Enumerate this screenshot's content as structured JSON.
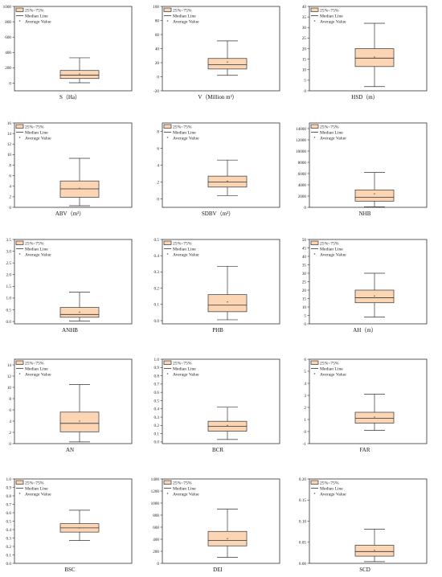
{
  "legend": {
    "box_label": "25%~75%",
    "median_label": "Median Line",
    "mean_label": "Average Value"
  },
  "colors": {
    "box_fill": "#fcd5b5",
    "stroke": "#333333"
  },
  "chart_data": [
    {
      "type": "box",
      "xlabel": "S（Ha）",
      "ylim": [
        -100,
        1000
      ],
      "yticks": [
        0,
        200,
        400,
        600,
        800,
        1000
      ],
      "min": 5,
      "q1": 60,
      "median": 105,
      "q3": 165,
      "max": 330,
      "mean": 120
    },
    {
      "type": "box",
      "xlabel": "V（Million m³）",
      "ylim": [
        -20,
        100
      ],
      "yticks": [
        -20,
        0,
        20,
        40,
        60,
        80,
        100
      ],
      "min": 2,
      "q1": 11,
      "median": 17,
      "q3": 26,
      "max": 51,
      "mean": 21
    },
    {
      "type": "box",
      "xlabel": "HSD（m）",
      "ylim": [
        0,
        40
      ],
      "yticks": [
        0,
        5,
        10,
        15,
        20,
        25,
        30,
        35,
        40
      ],
      "min": 2,
      "q1": 11.5,
      "median": 15.5,
      "q3": 20,
      "max": 32,
      "mean": 16
    },
    {
      "type": "box",
      "xlabel": "ABV（m³）",
      "ylim": [
        0,
        16
      ],
      "yticks": [
        0,
        2,
        4,
        6,
        8,
        10,
        12,
        14,
        16
      ],
      "min": 0.3,
      "q1": 1.9,
      "median": 3.5,
      "q3": 5,
      "max": 9.3,
      "mean": 3.6
    },
    {
      "type": "box",
      "xlabel": "SDBV（m³）",
      "ylim": [
        -1,
        9
      ],
      "yticks": [
        0,
        2,
        4,
        6,
        8
      ],
      "min": 0.4,
      "q1": 1.4,
      "median": 2,
      "q3": 2.7,
      "max": 4.6,
      "mean": 2.1
    },
    {
      "type": "box",
      "xlabel": "NHB",
      "ylim": [
        0,
        15000
      ],
      "yticks": [
        0,
        2000,
        4000,
        6000,
        8000,
        10000,
        12000,
        14000
      ],
      "min": 100,
      "q1": 1100,
      "median": 1800,
      "q3": 3100,
      "max": 6200,
      "mean": 2400
    },
    {
      "type": "box",
      "xlabel": "ANHB",
      "ylim": [
        -0.1,
        3.5
      ],
      "yticks": [
        0.0,
        0.5,
        1.0,
        1.5,
        2.0,
        2.5,
        3.0,
        3.5
      ],
      "min": 0.02,
      "q1": 0.18,
      "median": 0.3,
      "q3": 0.6,
      "max": 1.25,
      "mean": 0.4
    },
    {
      "type": "box",
      "xlabel": "PHB",
      "ylim": [
        -0.02,
        0.5
      ],
      "yticks": [
        0.0,
        0.1,
        0.2,
        0.3,
        0.4,
        0.5
      ],
      "min": 0.005,
      "q1": 0.055,
      "median": 0.095,
      "q3": 0.16,
      "max": 0.335,
      "mean": 0.115
    },
    {
      "type": "box",
      "xlabel": "AH（m）",
      "ylim": [
        0,
        50
      ],
      "yticks": [
        0,
        5,
        10,
        15,
        20,
        25,
        30,
        35,
        40,
        45,
        50
      ],
      "min": 4,
      "q1": 12.5,
      "median": 15.5,
      "q3": 20,
      "max": 30,
      "mean": 16.5
    },
    {
      "type": "box",
      "xlabel": "AN",
      "ylim": [
        0,
        15
      ],
      "yticks": [
        0,
        2,
        4,
        6,
        8,
        10,
        12,
        14
      ],
      "min": 0.3,
      "q1": 2.1,
      "median": 3.6,
      "q3": 5.6,
      "max": 10.5,
      "mean": 4
    },
    {
      "type": "box",
      "xlabel": "BCR",
      "ylim": [
        -0.02,
        1.0
      ],
      "yticks": [
        0.0,
        0.1,
        0.2,
        0.3,
        0.4,
        0.5,
        0.6,
        0.7,
        0.8,
        0.9,
        1.0
      ],
      "min": 0.03,
      "q1": 0.13,
      "median": 0.19,
      "q3": 0.25,
      "max": 0.42,
      "mean": 0.2
    },
    {
      "type": "box",
      "xlabel": "FAR",
      "ylim": [
        -1,
        6
      ],
      "yticks": [
        -1,
        0,
        1,
        2,
        3,
        4,
        5,
        6
      ],
      "min": 0.1,
      "q1": 0.7,
      "median": 1.1,
      "q3": 1.6,
      "max": 3.1,
      "mean": 1.2
    },
    {
      "type": "box",
      "xlabel": "BSC",
      "ylim": [
        0.0,
        1.0
      ],
      "yticks": [
        0.0,
        0.1,
        0.2,
        0.3,
        0.4,
        0.5,
        0.6,
        0.7,
        0.8,
        0.9,
        1.0
      ],
      "min": 0.27,
      "q1": 0.37,
      "median": 0.42,
      "q3": 0.47,
      "max": 0.63,
      "mean": 0.42
    },
    {
      "type": "box",
      "xlabel": "DEI",
      "ylim": [
        0,
        1400
      ],
      "yticks": [
        0,
        200,
        400,
        600,
        800,
        1000,
        1200,
        1400
      ],
      "min": 100,
      "q1": 290,
      "median": 380,
      "q3": 530,
      "max": 900,
      "mean": 410
    },
    {
      "type": "box",
      "xlabel": "SCD",
      "ylim": [
        0.0,
        0.2
      ],
      "yticks": [
        0.0,
        0.05,
        0.1,
        0.15,
        0.2
      ],
      "min": 0.004,
      "q1": 0.017,
      "median": 0.028,
      "q3": 0.043,
      "max": 0.081,
      "mean": 0.031
    }
  ]
}
